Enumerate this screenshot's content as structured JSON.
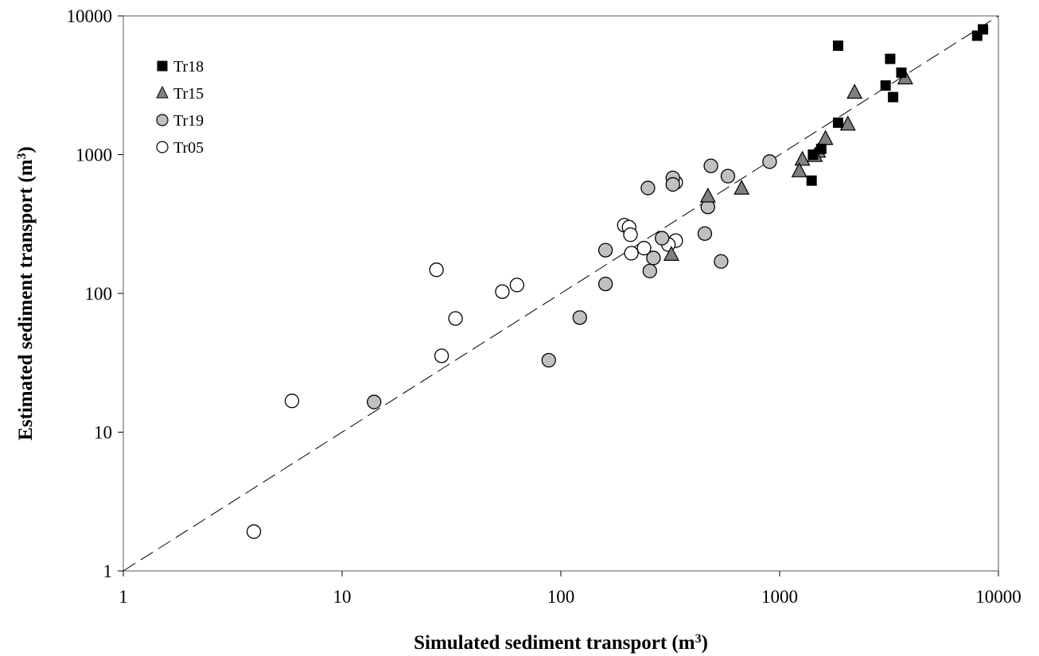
{
  "chart_data": {
    "type": "scatter",
    "x_scale": "log",
    "y_scale": "log",
    "xlim": [
      1,
      10000
    ],
    "ylim": [
      1,
      10000
    ],
    "x_ticks": [
      "1",
      "10",
      "100",
      "1000",
      "10000"
    ],
    "y_ticks": [
      "1",
      "10",
      "100",
      "1000",
      "10000"
    ],
    "xlabel": "Simulated sediment transport (m",
    "ylabel": "Estimated sediment transport (m",
    "label_superscript": "3",
    "label_suffix": ")",
    "legend_position": "top-left",
    "grid": false,
    "reference_line": {
      "style": "dashed",
      "points": [
        [
          1,
          1
        ],
        [
          10000,
          10000
        ]
      ]
    },
    "series": [
      {
        "name": "Tr18",
        "marker": "square",
        "fill": "#000000",
        "points": [
          [
            1850,
            6100
          ],
          [
            3200,
            4900
          ],
          [
            8000,
            7200
          ],
          [
            8500,
            8000
          ],
          [
            3600,
            3900
          ],
          [
            3050,
            3150
          ],
          [
            3300,
            2600
          ],
          [
            1850,
            1700
          ],
          [
            1550,
            1100
          ],
          [
            1420,
            1000
          ],
          [
            1400,
            650
          ]
        ]
      },
      {
        "name": "Tr15",
        "marker": "triangle",
        "fill": "#808080",
        "points": [
          [
            3750,
            3550
          ],
          [
            2200,
            2800
          ],
          [
            2050,
            1650
          ],
          [
            1620,
            1300
          ],
          [
            1500,
            1050
          ],
          [
            1450,
            980
          ],
          [
            1270,
            920
          ],
          [
            1230,
            760
          ],
          [
            670,
            570
          ],
          [
            470,
            500
          ],
          [
            320,
            190
          ]
        ]
      },
      {
        "name": "Tr19",
        "marker": "circle",
        "fill": "#c0c0c0",
        "points": [
          [
            900,
            890
          ],
          [
            485,
            830
          ],
          [
            580,
            700
          ],
          [
            325,
            680
          ],
          [
            325,
            610
          ],
          [
            250,
            575
          ],
          [
            470,
            420
          ],
          [
            455,
            270
          ],
          [
            290,
            250
          ],
          [
            160,
            205
          ],
          [
            265,
            180
          ],
          [
            540,
            170
          ],
          [
            255,
            145
          ],
          [
            160,
            117
          ],
          [
            122,
            67
          ],
          [
            88,
            33
          ],
          [
            14,
            16.5
          ]
        ]
      },
      {
        "name": "Tr05",
        "marker": "circle",
        "fill": "#ffffff",
        "points": [
          [
            335,
            630
          ],
          [
            195,
            310
          ],
          [
            205,
            300
          ],
          [
            208,
            265
          ],
          [
            335,
            240
          ],
          [
            310,
            225
          ],
          [
            240,
            212
          ],
          [
            210,
            195
          ],
          [
            27,
            148
          ],
          [
            63,
            115
          ],
          [
            54,
            103
          ],
          [
            33,
            66
          ],
          [
            28.5,
            35.5
          ],
          [
            5.9,
            16.8
          ],
          [
            3.95,
            1.92
          ]
        ]
      }
    ]
  }
}
